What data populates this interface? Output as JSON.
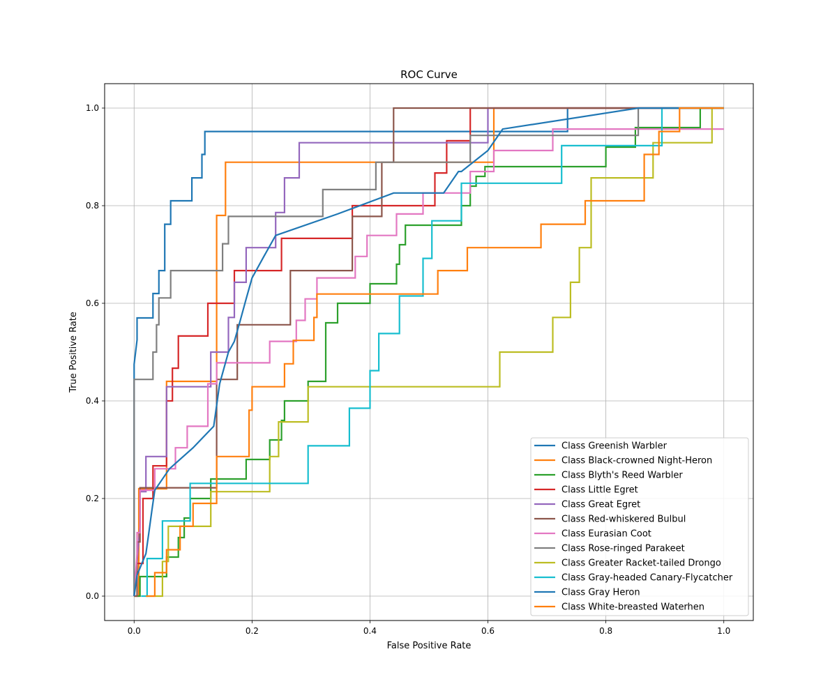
{
  "chart_data": {
    "type": "line",
    "title": "ROC Curve",
    "xlabel": "False Positive Rate",
    "ylabel": "True Positive Rate",
    "xlim": [
      -0.05,
      1.05
    ],
    "ylim": [
      -0.05,
      1.05
    ],
    "xticks": [
      "0.0",
      "0.2",
      "0.4",
      "0.6",
      "0.8",
      "1.0"
    ],
    "yticks": [
      "0.0",
      "0.2",
      "0.4",
      "0.6",
      "0.8",
      "1.0"
    ],
    "grid": true,
    "legend_position": "lower right",
    "series": [
      {
        "name": "Class Greenish Warbler",
        "color": "#1f77b4",
        "x": [
          0,
          0,
          0.005,
          0.005,
          0.032,
          0.032,
          0.042,
          0.042,
          0.052,
          0.052,
          0.062,
          0.062,
          0.072,
          0.072,
          0.098,
          0.098,
          0.115,
          0.115,
          0.12,
          0.12,
          0.73,
          0.73,
          0.735,
          0.735,
          1.0
        ],
        "y": [
          0,
          0.475,
          0.525,
          0.57,
          0.57,
          0.62,
          0.62,
          0.667,
          0.667,
          0.762,
          0.762,
          0.81,
          0.81,
          0.81,
          0.81,
          0.857,
          0.857,
          0.905,
          0.905,
          0.952,
          0.952,
          0.952,
          0.952,
          1.0,
          1.0
        ]
      },
      {
        "name": "Class Black-crowned Night-Heron",
        "color": "#ff7f0e",
        "x": [
          0,
          0.008,
          0.008,
          0.055,
          0.055,
          0.085,
          0.085,
          0.14,
          0.14,
          0.148,
          0.148,
          0.155,
          0.155,
          0.42,
          0.42,
          0.61,
          0.61,
          1.0
        ],
        "y": [
          0,
          0,
          0.22,
          0.22,
          0.44,
          0.44,
          0.44,
          0.44,
          0.78,
          0.78,
          0.78,
          0.78,
          0.889,
          0.889,
          0.889,
          0.889,
          1.0,
          1.0
        ]
      },
      {
        "name": "Class Blyth's Reed Warbler",
        "color": "#2ca02c",
        "x": [
          0,
          0.01,
          0.01,
          0.055,
          0.055,
          0.075,
          0.075,
          0.085,
          0.085,
          0.095,
          0.095,
          0.13,
          0.13,
          0.19,
          0.19,
          0.23,
          0.23,
          0.25,
          0.25,
          0.255,
          0.255,
          0.295,
          0.295,
          0.325,
          0.325,
          0.345,
          0.345,
          0.4,
          0.4,
          0.445,
          0.445,
          0.45,
          0.45,
          0.46,
          0.46,
          0.47,
          0.47,
          0.555,
          0.555,
          0.57,
          0.57,
          0.58,
          0.58,
          0.595,
          0.595,
          0.6,
          0.6,
          0.8,
          0.8,
          0.85,
          0.85,
          0.96,
          0.96,
          1.0
        ],
        "y": [
          0,
          0,
          0.04,
          0.04,
          0.08,
          0.08,
          0.12,
          0.12,
          0.16,
          0.16,
          0.2,
          0.2,
          0.24,
          0.24,
          0.28,
          0.28,
          0.32,
          0.32,
          0.36,
          0.36,
          0.4,
          0.4,
          0.44,
          0.44,
          0.56,
          0.56,
          0.6,
          0.6,
          0.64,
          0.64,
          0.68,
          0.68,
          0.72,
          0.72,
          0.76,
          0.76,
          0.76,
          0.76,
          0.8,
          0.8,
          0.84,
          0.84,
          0.86,
          0.86,
          0.88,
          0.88,
          0.88,
          0.88,
          0.92,
          0.92,
          0.96,
          0.96,
          1.0,
          1.0
        ]
      },
      {
        "name": "Class Little Egret",
        "color": "#d62728",
        "x": [
          0,
          0.005,
          0.005,
          0.015,
          0.015,
          0.032,
          0.032,
          0.055,
          0.055,
          0.065,
          0.065,
          0.075,
          0.075,
          0.125,
          0.125,
          0.17,
          0.17,
          0.25,
          0.25,
          0.37,
          0.37,
          0.51,
          0.51,
          0.53,
          0.53,
          0.57,
          0.57,
          1.0
        ],
        "y": [
          0,
          0.067,
          0.067,
          0.067,
          0.2,
          0.2,
          0.267,
          0.267,
          0.4,
          0.4,
          0.467,
          0.467,
          0.533,
          0.533,
          0.6,
          0.6,
          0.667,
          0.667,
          0.733,
          0.733,
          0.8,
          0.8,
          0.867,
          0.867,
          0.933,
          0.933,
          1.0,
          1.0
        ]
      },
      {
        "name": "Class Great Egret",
        "color": "#9467bd",
        "x": [
          0,
          0.01,
          0.01,
          0.02,
          0.02,
          0.055,
          0.055,
          0.13,
          0.13,
          0.16,
          0.16,
          0.17,
          0.17,
          0.19,
          0.19,
          0.24,
          0.24,
          0.255,
          0.255,
          0.28,
          0.28,
          0.6,
          0.6,
          1.0
        ],
        "y": [
          0,
          0.143,
          0.214,
          0.214,
          0.286,
          0.286,
          0.429,
          0.429,
          0.5,
          0.5,
          0.571,
          0.571,
          0.643,
          0.643,
          0.714,
          0.714,
          0.786,
          0.786,
          0.857,
          0.857,
          0.929,
          0.929,
          1.0,
          1.0
        ]
      },
      {
        "name": "Class Red-whiskered Bulbul",
        "color": "#8c564b",
        "x": [
          0,
          0.005,
          0.005,
          0.01,
          0.01,
          0.14,
          0.14,
          0.175,
          0.175,
          0.265,
          0.265,
          0.37,
          0.37,
          0.42,
          0.42,
          0.44,
          0.44,
          1.0
        ],
        "y": [
          0,
          0,
          0.111,
          0.111,
          0.222,
          0.222,
          0.444,
          0.444,
          0.556,
          0.556,
          0.667,
          0.667,
          0.778,
          0.778,
          0.889,
          0.889,
          1.0,
          1.0
        ]
      },
      {
        "name": "Class Eurasian Coot",
        "color": "#e377c2",
        "x": [
          0,
          0.005,
          0.005,
          0.01,
          0.01,
          0.035,
          0.035,
          0.07,
          0.07,
          0.09,
          0.09,
          0.125,
          0.125,
          0.14,
          0.14,
          0.23,
          0.23,
          0.275,
          0.275,
          0.29,
          0.29,
          0.31,
          0.31,
          0.375,
          0.375,
          0.395,
          0.395,
          0.445,
          0.445,
          0.49,
          0.49,
          0.57,
          0.57,
          0.61,
          0.61,
          0.71,
          0.71,
          1.0
        ],
        "y": [
          0,
          0.087,
          0.13,
          0.13,
          0.217,
          0.217,
          0.261,
          0.261,
          0.304,
          0.304,
          0.348,
          0.348,
          0.435,
          0.435,
          0.478,
          0.478,
          0.522,
          0.522,
          0.565,
          0.565,
          0.609,
          0.609,
          0.652,
          0.652,
          0.696,
          0.696,
          0.739,
          0.739,
          0.783,
          0.783,
          0.826,
          0.826,
          0.87,
          0.87,
          0.913,
          0.913,
          0.957,
          0.957
        ]
      },
      {
        "name": "Class Rose-ringed Parakeet",
        "color": "#7f7f7f",
        "x": [
          0,
          0,
          0.032,
          0.032,
          0.038,
          0.038,
          0.042,
          0.042,
          0.062,
          0.062,
          0.15,
          0.15,
          0.16,
          0.16,
          0.32,
          0.32,
          0.41,
          0.41,
          0.57,
          0.57,
          0.855,
          0.855,
          1.0
        ],
        "y": [
          0,
          0.444,
          0.444,
          0.5,
          0.5,
          0.556,
          0.556,
          0.611,
          0.611,
          0.667,
          0.667,
          0.722,
          0.722,
          0.778,
          0.778,
          0.833,
          0.833,
          0.889,
          0.889,
          0.944,
          0.944,
          1.0,
          1.0
        ]
      },
      {
        "name": "Class Greater Racket-tailed Drongo",
        "color": "#bcbd22",
        "x": [
          0.02,
          0.048,
          0.048,
          0.058,
          0.058,
          0.13,
          0.13,
          0.23,
          0.23,
          0.245,
          0.245,
          0.295,
          0.295,
          0.62,
          0.62,
          0.71,
          0.71,
          0.74,
          0.74,
          0.755,
          0.755,
          0.775,
          0.775,
          0.88,
          0.88,
          0.98,
          0.98,
          1.0
        ],
        "y": [
          0,
          0,
          0.071,
          0.071,
          0.143,
          0.143,
          0.214,
          0.214,
          0.286,
          0.286,
          0.357,
          0.357,
          0.429,
          0.429,
          0.5,
          0.5,
          0.571,
          0.571,
          0.643,
          0.643,
          0.714,
          0.714,
          0.857,
          0.857,
          0.929,
          0.929,
          1.0,
          1.0
        ]
      },
      {
        "name": "Class Gray-headed Canary-Flycatcher",
        "color": "#17becf",
        "x": [
          0.012,
          0.022,
          0.022,
          0.048,
          0.048,
          0.09,
          0.09,
          0.095,
          0.095,
          0.295,
          0.295,
          0.365,
          0.365,
          0.4,
          0.4,
          0.415,
          0.415,
          0.45,
          0.45,
          0.49,
          0.49,
          0.505,
          0.505,
          0.555,
          0.555,
          0.725,
          0.725,
          0.895,
          0.895,
          1.0
        ],
        "y": [
          0,
          0,
          0.077,
          0.077,
          0.154,
          0.154,
          0.154,
          0.154,
          0.231,
          0.231,
          0.308,
          0.308,
          0.385,
          0.385,
          0.462,
          0.462,
          0.538,
          0.538,
          0.615,
          0.615,
          0.692,
          0.692,
          0.769,
          0.769,
          0.846,
          0.846,
          0.923,
          0.923,
          1.0,
          1.0
        ]
      },
      {
        "name": "Class Gray Heron",
        "color": "#1f77b4",
        "x": [
          0,
          0.005,
          0.005,
          0.02,
          0.02,
          0.025,
          0.025,
          0.03,
          0.03,
          0.035,
          0.035,
          0.06,
          0.06,
          0.1,
          0.1,
          0.135,
          0.135,
          0.145,
          0.145,
          0.16,
          0.16,
          0.17,
          0.17,
          0.18,
          0.18,
          0.19,
          0.19,
          0.2,
          0.2,
          0.22,
          0.22,
          0.24,
          0.24,
          0.345,
          0.345,
          0.44,
          0.44,
          0.48,
          0.48,
          0.525,
          0.525,
          0.55,
          0.55,
          0.555,
          0.555,
          0.6,
          0.6,
          0.625,
          0.625,
          0.855,
          0.855,
          1.0
        ],
        "y": [
          0,
          0.043,
          0.043,
          0.087,
          0.087,
          0.13,
          0.13,
          0.174,
          0.174,
          0.217,
          0.217,
          0.261,
          0.261,
          0.304,
          0.304,
          0.348,
          0.348,
          0.435,
          0.435,
          0.5,
          0.5,
          0.522,
          0.522,
          0.565,
          0.565,
          0.609,
          0.609,
          0.652,
          0.652,
          0.696,
          0.696,
          0.739,
          0.739,
          0.783,
          0.783,
          0.826,
          0.826,
          0.826,
          0.826,
          0.826,
          0.826,
          0.87,
          0.87,
          0.87,
          0.87,
          0.913,
          0.913,
          0.957,
          0.957,
          1.0,
          1.0,
          1.0
        ]
      },
      {
        "name": "Class White-breasted Waterhen",
        "color": "#ff7f0e",
        "x": [
          0.02,
          0.035,
          0.035,
          0.055,
          0.055,
          0.078,
          0.078,
          0.1,
          0.1,
          0.14,
          0.14,
          0.195,
          0.195,
          0.2,
          0.2,
          0.255,
          0.255,
          0.27,
          0.27,
          0.305,
          0.305,
          0.31,
          0.31,
          0.515,
          0.515,
          0.53,
          0.53,
          0.565,
          0.565,
          0.69,
          0.69,
          0.765,
          0.765,
          0.865,
          0.865,
          0.89,
          0.89,
          0.925,
          0.925,
          1.0
        ],
        "y": [
          0,
          0,
          0.048,
          0.048,
          0.095,
          0.095,
          0.143,
          0.143,
          0.19,
          0.19,
          0.286,
          0.286,
          0.381,
          0.381,
          0.429,
          0.429,
          0.476,
          0.476,
          0.524,
          0.524,
          0.571,
          0.571,
          0.619,
          0.619,
          0.667,
          0.667,
          0.667,
          0.667,
          0.714,
          0.714,
          0.762,
          0.762,
          0.81,
          0.81,
          0.905,
          0.905,
          0.952,
          0.952,
          1.0,
          1.0
        ]
      }
    ]
  }
}
